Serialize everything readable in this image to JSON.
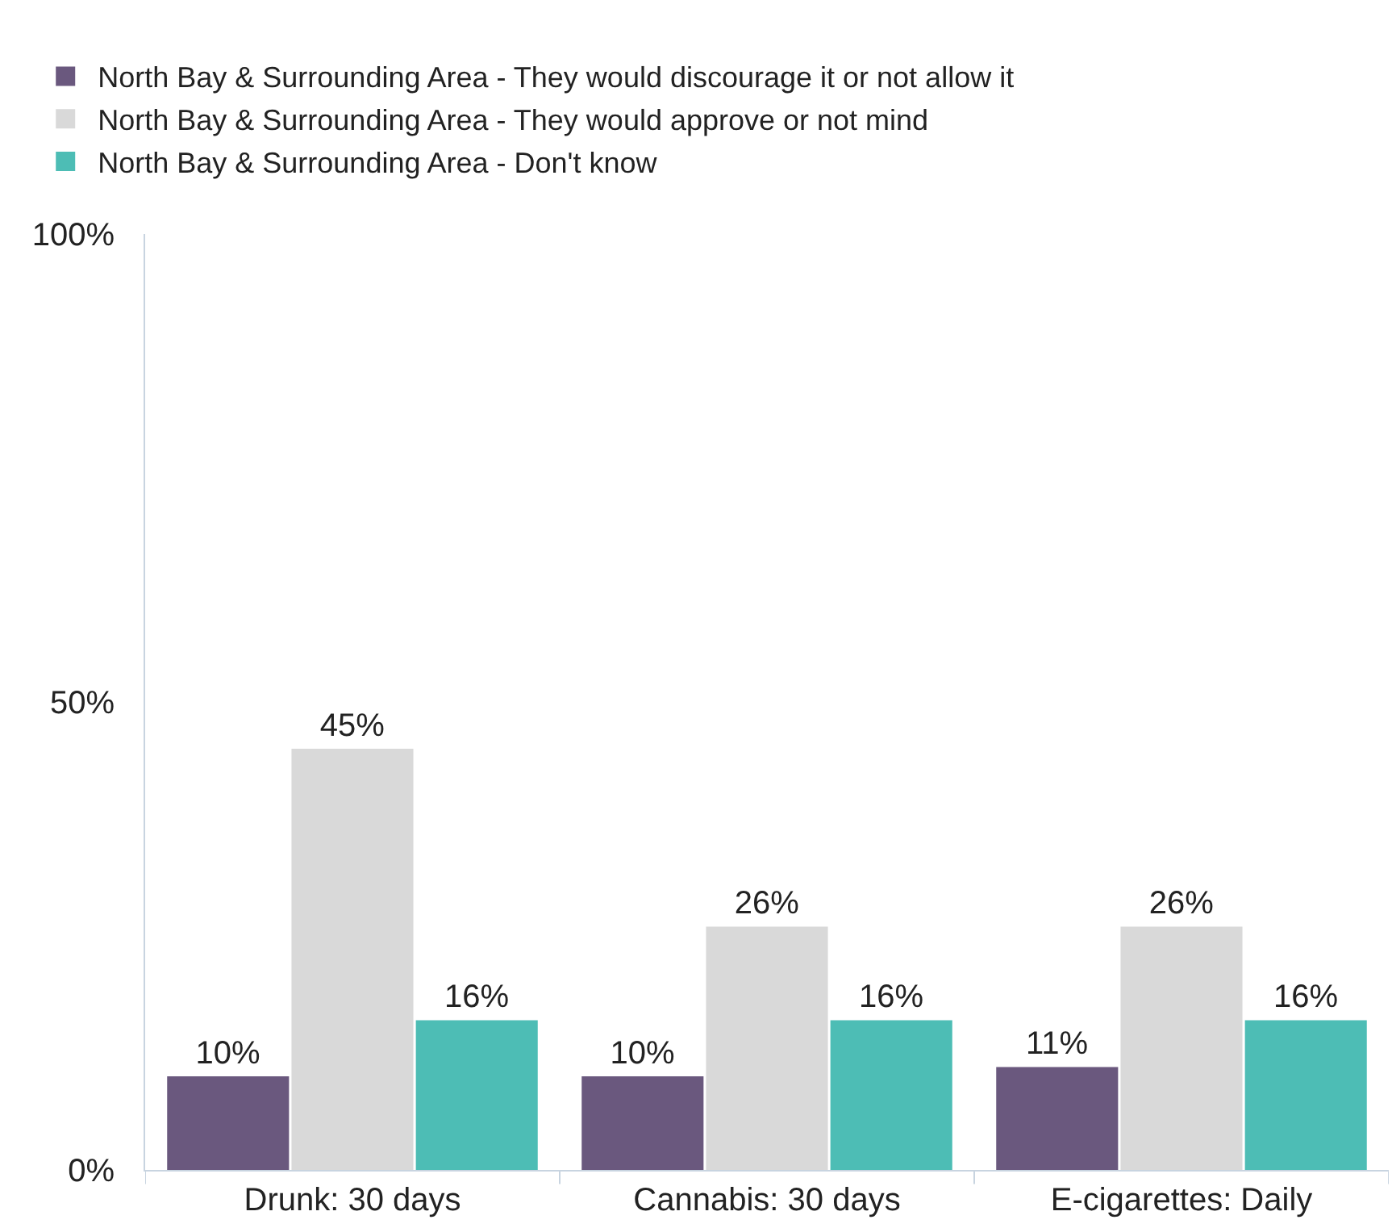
{
  "chart_data": {
    "type": "bar",
    "categories": [
      "Drunk: 30 days",
      "Cannabis: 30 days",
      "E-cigarettes: Daily"
    ],
    "series": [
      {
        "name": "North Bay & Surrounding Area - They would discourage it or not allow it",
        "color": "#6a587e",
        "values": [
          10,
          10,
          11
        ],
        "value_labels": [
          "10%",
          "10%",
          "11%"
        ]
      },
      {
        "name": "North Bay & Surrounding Area - They would approve or not mind",
        "color": "#d9d9d9",
        "values": [
          45,
          26,
          26
        ],
        "value_labels": [
          "45%",
          "26%",
          "26%"
        ]
      },
      {
        "name": "North Bay & Surrounding Area - Don't know",
        "color": "#4dbdb5",
        "values": [
          16,
          16,
          16
        ],
        "value_labels": [
          "16%",
          "16%",
          "16%"
        ]
      }
    ],
    "ylim": [
      0,
      100
    ],
    "yticks": [
      {
        "value": 0,
        "label": "0%"
      },
      {
        "value": 50,
        "label": "50%"
      },
      {
        "value": 100,
        "label": "100%"
      }
    ],
    "grid": false,
    "legend": "top left"
  }
}
